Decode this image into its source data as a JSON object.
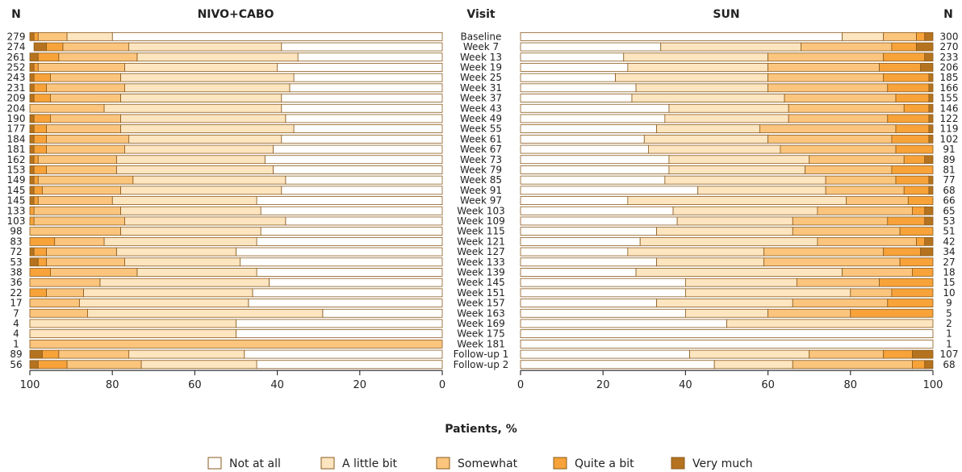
{
  "chart_data": {
    "type": "bar",
    "orientation": "horizontal",
    "stacked": true,
    "headers": {
      "n_left": "N",
      "left_title": "NIVO+CABO",
      "visit": "Visit",
      "right_title": "SUN",
      "n_right": "N"
    },
    "xlabel": "Patients, %",
    "xlim": [
      0,
      100
    ],
    "xticks": [
      0,
      20,
      40,
      60,
      80,
      100
    ],
    "left_axis_reversed": true,
    "legend_position": "bottom-center",
    "categories": [
      "Not at all",
      "A little bit",
      "Somewhat",
      "Quite a bit",
      "Very much"
    ],
    "colors": [
      "#ffffff",
      "#fde5c0",
      "#fbc57e",
      "#f7a33a",
      "#b5731f"
    ],
    "visits": [
      "Baseline",
      "Week 7",
      "Week 13",
      "Week 19",
      "Week 25",
      "Week 31",
      "Week 37",
      "Week 43",
      "Week 49",
      "Week 55",
      "Week 61",
      "Week 67",
      "Week 73",
      "Week 79",
      "Week 85",
      "Week 91",
      "Week 97",
      "Week 103",
      "Week 109",
      "Week 115",
      "Week 121",
      "Week 127",
      "Week 133",
      "Week 139",
      "Week 145",
      "Week 151",
      "Week 157",
      "Week 163",
      "Week 169",
      "Week 175",
      "Week 181",
      "Follow-up 1",
      "Follow-up 2"
    ],
    "nivo_cabo": {
      "n": [
        279,
        274,
        261,
        252,
        243,
        231,
        209,
        204,
        190,
        177,
        184,
        181,
        162,
        153,
        149,
        145,
        145,
        133,
        103,
        98,
        83,
        72,
        53,
        38,
        36,
        22,
        17,
        7,
        4,
        4,
        1,
        89,
        56
      ],
      "values": [
        [
          80,
          11,
          7,
          1,
          1
        ],
        [
          39,
          37,
          16,
          4,
          3
        ],
        [
          35,
          39,
          19,
          5,
          2
        ],
        [
          40,
          37,
          21,
          1,
          1
        ],
        [
          36,
          42,
          17,
          4,
          1
        ],
        [
          37,
          40,
          19,
          3,
          1
        ],
        [
          39,
          39,
          17,
          4,
          1
        ],
        [
          39,
          43,
          18,
          0,
          0
        ],
        [
          38,
          40,
          17,
          4,
          1
        ],
        [
          36,
          42,
          18,
          3,
          1
        ],
        [
          39,
          37,
          20,
          3,
          1
        ],
        [
          41,
          36,
          19,
          3,
          1
        ],
        [
          43,
          36,
          19,
          1,
          1
        ],
        [
          41,
          38,
          17,
          3,
          1
        ],
        [
          38,
          37,
          23,
          1,
          1
        ],
        [
          39,
          39,
          19,
          2,
          1
        ],
        [
          45,
          35,
          18,
          1,
          1
        ],
        [
          44,
          34,
          21,
          1,
          0
        ],
        [
          38,
          39,
          22,
          1,
          0
        ],
        [
          44,
          34,
          22,
          0,
          0
        ],
        [
          45,
          37,
          12,
          6,
          0
        ],
        [
          50,
          29,
          17,
          3,
          1
        ],
        [
          49,
          28,
          19,
          2,
          2
        ],
        [
          45,
          29,
          21,
          5,
          0
        ],
        [
          42,
          41,
          17,
          0,
          0
        ],
        [
          46,
          41,
          9,
          4,
          0
        ],
        [
          47,
          41,
          12,
          0,
          0
        ],
        [
          29,
          57,
          14,
          0,
          0
        ],
        [
          50,
          50,
          0,
          0,
          0
        ],
        [
          50,
          50,
          0,
          0,
          0
        ],
        [
          0,
          0,
          100,
          0,
          0
        ],
        [
          48,
          28,
          17,
          4,
          3
        ],
        [
          45,
          28,
          18,
          7,
          2
        ]
      ]
    },
    "sun": {
      "n": [
        300,
        270,
        233,
        206,
        185,
        166,
        155,
        146,
        122,
        119,
        102,
        91,
        89,
        81,
        77,
        68,
        66,
        65,
        53,
        51,
        42,
        34,
        27,
        18,
        15,
        10,
        9,
        5,
        2,
        1,
        1,
        107,
        68
      ],
      "values": [
        [
          78,
          10,
          8,
          2,
          2
        ],
        [
          34,
          34,
          22,
          6,
          4
        ],
        [
          25,
          35,
          28,
          10,
          2
        ],
        [
          26,
          34,
          27,
          10,
          3
        ],
        [
          23,
          37,
          28,
          11,
          1
        ],
        [
          28,
          32,
          29,
          10,
          1
        ],
        [
          27,
          37,
          27,
          8,
          1
        ],
        [
          36,
          29,
          28,
          6,
          1
        ],
        [
          35,
          30,
          24,
          10,
          1
        ],
        [
          33,
          25,
          33,
          8,
          1
        ],
        [
          30,
          30,
          30,
          9,
          1
        ],
        [
          31,
          32,
          28,
          9,
          0
        ],
        [
          36,
          34,
          23,
          5,
          2
        ],
        [
          36,
          33,
          21,
          10,
          0
        ],
        [
          35,
          39,
          17,
          8,
          1
        ],
        [
          43,
          31,
          19,
          6,
          1
        ],
        [
          26,
          53,
          15,
          6,
          0
        ],
        [
          37,
          35,
          23,
          3,
          2
        ],
        [
          38,
          28,
          23,
          9,
          2
        ],
        [
          33,
          33,
          26,
          8,
          0
        ],
        [
          29,
          43,
          24,
          2,
          2
        ],
        [
          26,
          33,
          29,
          9,
          3
        ],
        [
          33,
          26,
          33,
          8,
          0
        ],
        [
          28,
          50,
          17,
          5,
          0
        ],
        [
          40,
          27,
          20,
          13,
          0
        ],
        [
          40,
          40,
          10,
          10,
          0
        ],
        [
          33,
          33,
          23,
          11,
          0
        ],
        [
          40,
          20,
          20,
          20,
          0
        ],
        [
          50,
          50,
          0,
          0,
          0
        ],
        [
          100,
          0,
          0,
          0,
          0
        ],
        [
          100,
          0,
          0,
          0,
          0
        ],
        [
          41,
          29,
          18,
          7,
          5
        ],
        [
          47,
          19,
          29,
          3,
          2
        ]
      ]
    }
  }
}
